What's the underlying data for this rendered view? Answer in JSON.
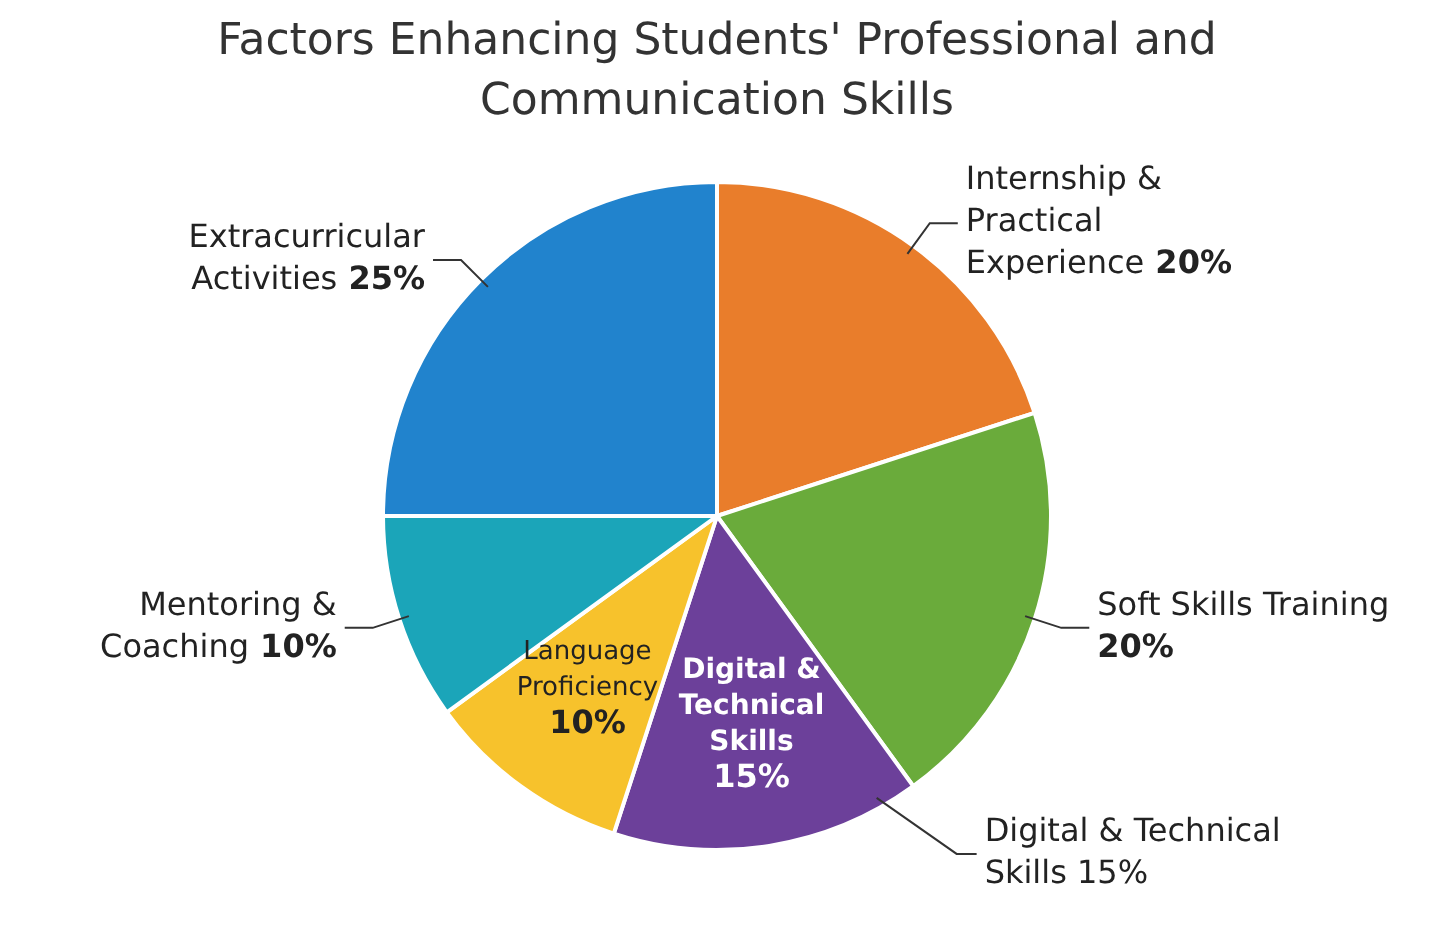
{
  "chart_data": {
    "type": "pie",
    "title": "Factors Enhancing Students' Professional and Communication Skills",
    "categories": [
      "Internship & Practical Experience",
      "Soft Skills Training",
      "Digital & Technical Skills",
      "Language Proficiency",
      "Mentoring & Coaching",
      "Extracurricular Activities"
    ],
    "values": [
      20,
      20,
      15,
      10,
      10,
      25
    ],
    "value_labels": [
      "20%",
      "20%",
      "15%",
      "10%",
      "10%",
      "25%"
    ],
    "colors": [
      "#e97d2b",
      "#6aab3b",
      "#6c409a",
      "#f7c22c",
      "#1ba5b9",
      "#2183cd"
    ],
    "annotations": [
      {
        "text": "Digital & Technical Skills 15%",
        "x": "Digital & Technical Skills"
      }
    ],
    "legend": false
  }
}
